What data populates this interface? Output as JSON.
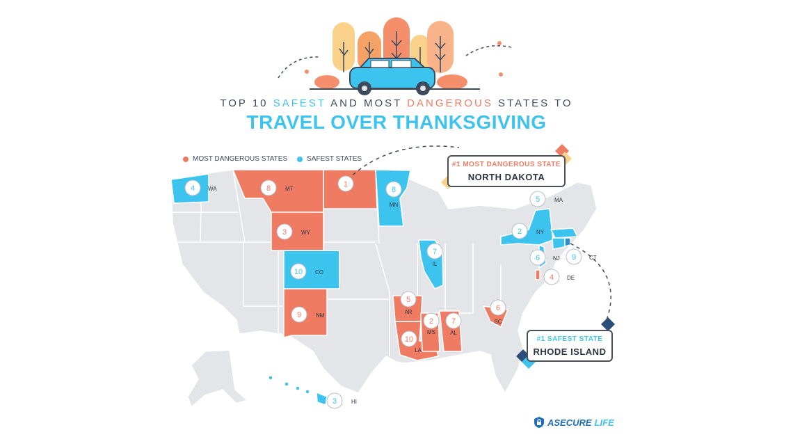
{
  "header": {
    "subtitle_prefix": "TOP 10 ",
    "subtitle_safest": "SAFEST",
    "subtitle_mid": " AND MOST ",
    "subtitle_dangerous": "DANGEROUS",
    "subtitle_suffix": " STATES TO",
    "title": "TRAVEL OVER THANKSGIVING"
  },
  "legend": {
    "dangerous_label": "MOST DANGEROUS STATES",
    "safest_label": "SAFEST STATES"
  },
  "colors": {
    "dangerous": "#ef7b63",
    "safe": "#3cc4ef",
    "neutral": "#e3e5e9",
    "border": "#ffffff"
  },
  "callouts": {
    "dangerous": {
      "rank_label": "#1 MOST DANGEROUS  STATE",
      "state_name": "NORTH DAKOTA"
    },
    "safest": {
      "rank_label": "#1 SAFEST STATE",
      "state_name": "RHODE ISLAND"
    }
  },
  "dangerous_states": [
    {
      "rank": "1",
      "abbr": ""
    },
    {
      "rank": "2",
      "abbr": "MS"
    },
    {
      "rank": "3",
      "abbr": "WY"
    },
    {
      "rank": "4",
      "abbr": "DE"
    },
    {
      "rank": "5",
      "abbr": "AR"
    },
    {
      "rank": "6",
      "abbr": "SC"
    },
    {
      "rank": "7",
      "abbr": "AL"
    },
    {
      "rank": "8",
      "abbr": "MT"
    },
    {
      "rank": "9",
      "abbr": "NM"
    },
    {
      "rank": "10",
      "abbr": "LA"
    }
  ],
  "safest_states": [
    {
      "rank": "2",
      "abbr": "NY"
    },
    {
      "rank": "3",
      "abbr": "HI"
    },
    {
      "rank": "4",
      "abbr": "WA"
    },
    {
      "rank": "5",
      "abbr": "MA"
    },
    {
      "rank": "6",
      "abbr": "NJ"
    },
    {
      "rank": "7",
      "abbr": "IL"
    },
    {
      "rank": "8",
      "abbr": "MN"
    },
    {
      "rank": "9",
      "abbr": "CT"
    },
    {
      "rank": "10",
      "abbr": "CO"
    }
  ],
  "brand": {
    "part1": "ASECURE",
    "part2": "LIFE"
  }
}
